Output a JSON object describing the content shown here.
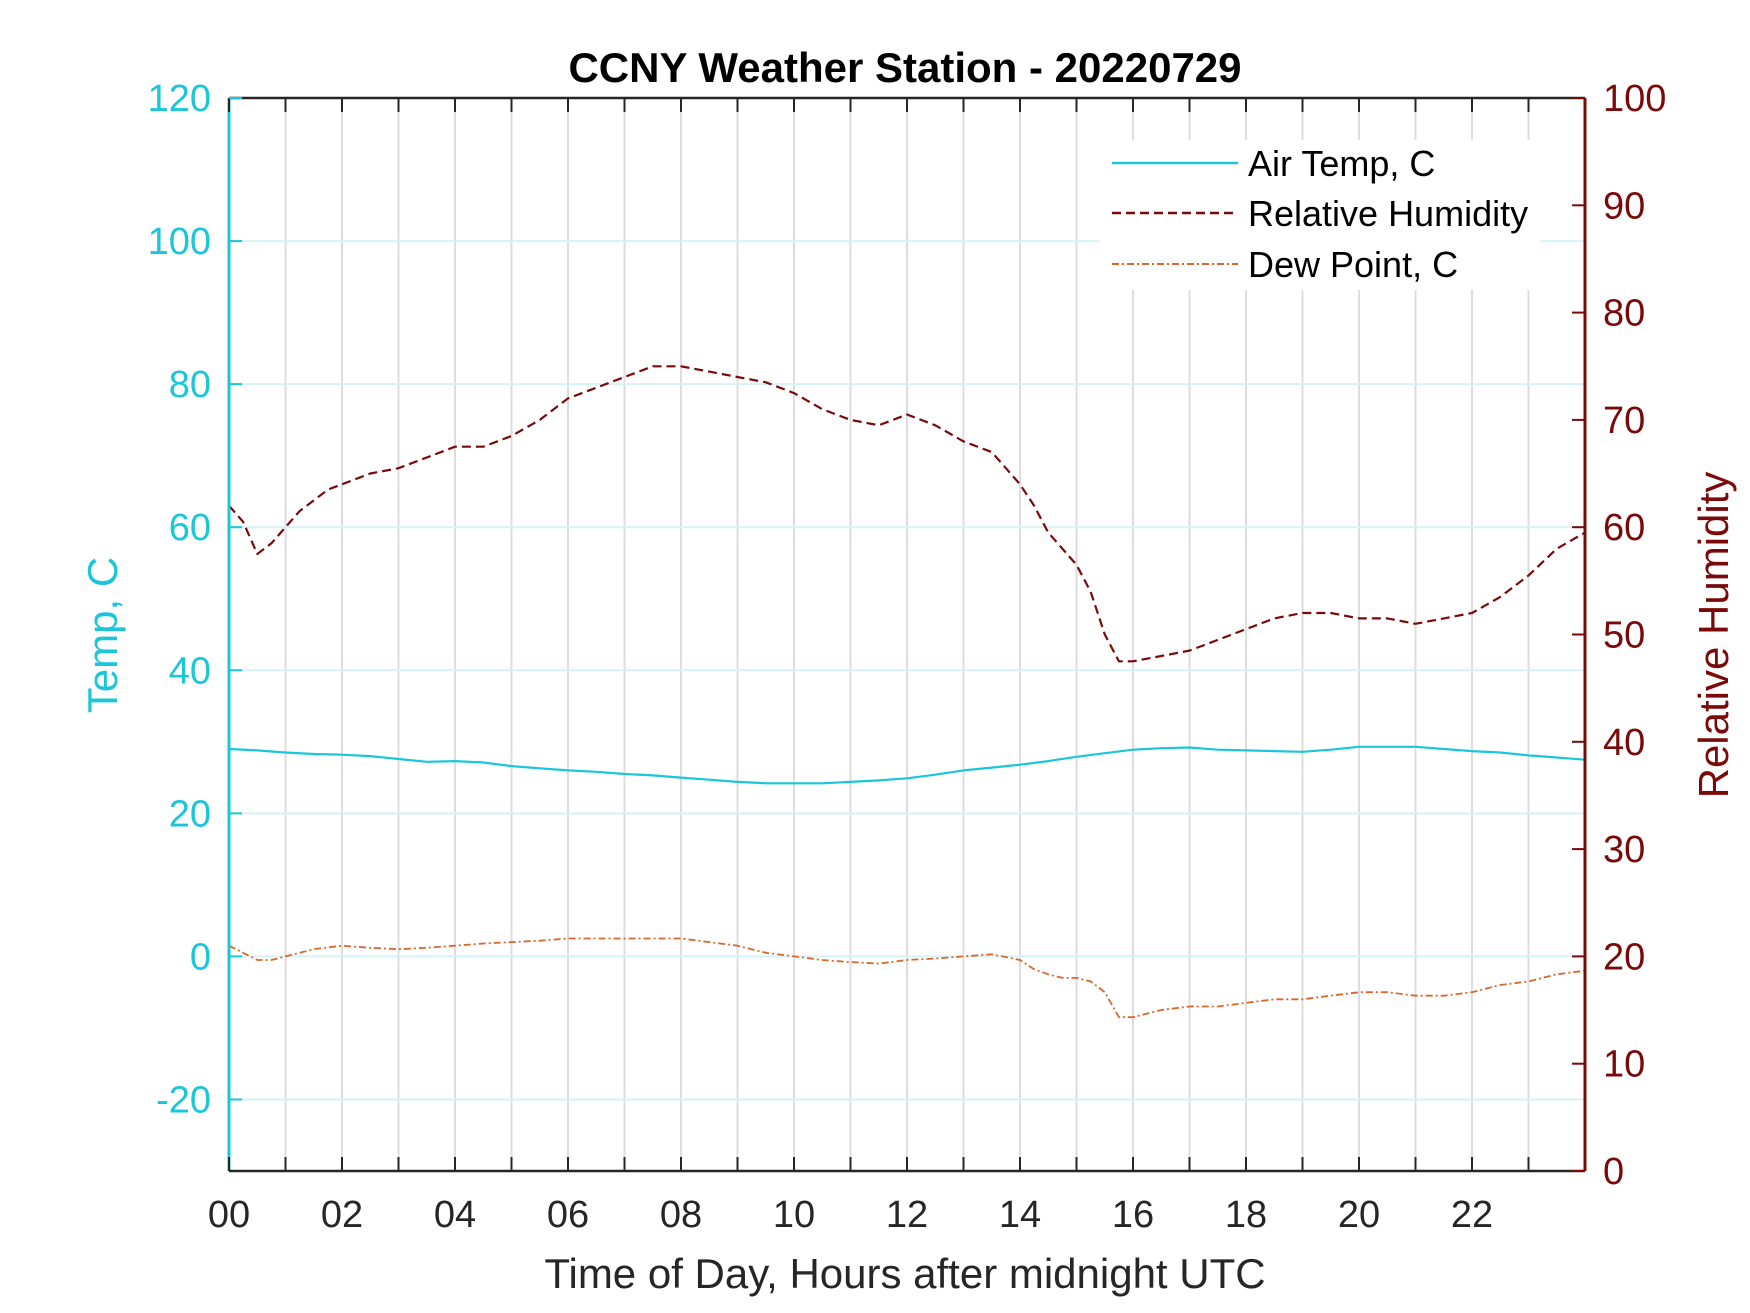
{
  "chart_data": {
    "type": "line",
    "title": "CCNY Weather Station - 20220729",
    "xlabel": "Time of Day, Hours after midnight UTC",
    "ylabel_left": "Temp, C",
    "ylabel_right": "Relative Humidity",
    "xlim": [
      0,
      24
    ],
    "ylim_left": [
      -30,
      120
    ],
    "ylim_right": [
      0,
      100
    ],
    "x_ticks": [
      0,
      2,
      4,
      6,
      8,
      10,
      12,
      14,
      16,
      18,
      20,
      22
    ],
    "x_tick_labels": [
      "00",
      "02",
      "04",
      "06",
      "08",
      "10",
      "12",
      "14",
      "16",
      "18",
      "20",
      "22"
    ],
    "y_left_ticks": [
      -20,
      0,
      20,
      40,
      60,
      80,
      100,
      120
    ],
    "y_left_tick_labels": [
      "-20",
      "0",
      "20",
      "40",
      "60",
      "80",
      "100",
      "120"
    ],
    "y_right_ticks": [
      0,
      10,
      20,
      30,
      40,
      50,
      60,
      70,
      80,
      90,
      100
    ],
    "y_right_tick_labels": [
      "0",
      "10",
      "20",
      "30",
      "40",
      "50",
      "60",
      "70",
      "80",
      "90",
      "100"
    ],
    "grid": true,
    "legend_position": "top-right",
    "colors": {
      "air_temp": "#1AC6D9",
      "humidity": "#7A0A0A",
      "dew_point": "#D9662B",
      "vertical_grid": "#DDDDDD",
      "horizontal_grid": "#D6F2F6",
      "left_axis": "#1AC6D9",
      "right_axis": "#7A0A0A",
      "x_axis": "#262626"
    },
    "series": [
      {
        "name": "Air Temp, C",
        "axis": "left",
        "style": "solid",
        "x": [
          0,
          0.5,
          1,
          1.5,
          2,
          2.5,
          3,
          3.5,
          4,
          4.5,
          5,
          5.5,
          6,
          6.5,
          7,
          7.5,
          8,
          8.5,
          9,
          9.5,
          10,
          10.5,
          11,
          11.5,
          12,
          12.5,
          13,
          13.5,
          14,
          14.5,
          15,
          15.5,
          16,
          16.5,
          17,
          17.5,
          18,
          18.5,
          19,
          19.5,
          20,
          20.5,
          21,
          21.5,
          22,
          22.5,
          23,
          23.5,
          24
        ],
        "values": [
          29.0,
          28.8,
          28.5,
          28.3,
          28.2,
          28.0,
          27.6,
          27.2,
          27.3,
          27.1,
          26.6,
          26.3,
          26.0,
          25.8,
          25.5,
          25.3,
          25.0,
          24.7,
          24.4,
          24.2,
          24.2,
          24.2,
          24.4,
          24.6,
          24.9,
          25.4,
          26.0,
          26.4,
          26.8,
          27.3,
          27.9,
          28.4,
          28.9,
          29.1,
          29.2,
          28.9,
          28.8,
          28.7,
          28.6,
          28.9,
          29.3,
          29.3,
          29.3,
          29.0,
          28.7,
          28.5,
          28.1,
          27.8,
          27.5
        ]
      },
      {
        "name": "Relative Humidity",
        "axis": "right",
        "style": "dashed",
        "x": [
          0,
          0.25,
          0.5,
          0.75,
          1,
          1.25,
          1.5,
          1.75,
          2,
          2.5,
          3,
          3.5,
          4,
          4.5,
          5,
          5.5,
          6,
          6.5,
          7,
          7.5,
          8,
          8.5,
          9,
          9.5,
          10,
          10.5,
          11,
          11.5,
          12,
          12.5,
          13,
          13.5,
          13.75,
          14,
          14.25,
          14.5,
          15,
          15.25,
          15.5,
          15.75,
          16,
          16.5,
          17,
          17.5,
          18,
          18.5,
          19,
          19.5,
          20,
          20.5,
          21,
          21.5,
          22,
          22.5,
          23,
          23.5,
          24
        ],
        "values": [
          62,
          60.5,
          57.5,
          58.5,
          60,
          61.5,
          62.5,
          63.5,
          64,
          65,
          65.5,
          66.5,
          67.5,
          67.5,
          68.5,
          70,
          72,
          73,
          74,
          75,
          75,
          74.5,
          74,
          73.5,
          72.5,
          71,
          70,
          69.5,
          70.5,
          69.5,
          68,
          67,
          65.5,
          64,
          62,
          59.5,
          56.5,
          54,
          50,
          47.5,
          47.5,
          48,
          48.5,
          49.5,
          50.5,
          51.5,
          52,
          52,
          51.5,
          51.5,
          51,
          51.5,
          52,
          53.5,
          55.5,
          58,
          59.5
        ]
      },
      {
        "name": "Dew Point, C",
        "axis": "left",
        "style": "dash-dot",
        "x": [
          0,
          0.25,
          0.5,
          0.75,
          1,
          1.5,
          2,
          2.5,
          3,
          3.5,
          4,
          4.5,
          5,
          5.5,
          6,
          6.5,
          7,
          7.5,
          8,
          8.5,
          9,
          9.5,
          10,
          10.5,
          11,
          11.5,
          12,
          12.5,
          13,
          13.5,
          14,
          14.25,
          14.5,
          14.75,
          15,
          15.25,
          15.5,
          15.75,
          16,
          16.5,
          17,
          17.5,
          18,
          18.5,
          19,
          19.5,
          20,
          20.5,
          21,
          21.5,
          22,
          22.5,
          23,
          23.5,
          24
        ],
        "values": [
          1.5,
          0.5,
          -0.5,
          -0.5,
          0,
          1,
          1.5,
          1.2,
          1,
          1.2,
          1.5,
          1.8,
          2,
          2.2,
          2.5,
          2.5,
          2.5,
          2.5,
          2.5,
          2,
          1.5,
          0.5,
          0,
          -0.5,
          -0.8,
          -1,
          -0.5,
          -0.3,
          0,
          0.3,
          -0.5,
          -1.8,
          -2.5,
          -3,
          -3,
          -3.5,
          -5,
          -8.5,
          -8.5,
          -7.5,
          -7,
          -7,
          -6.5,
          -6,
          -6,
          -5.5,
          -5,
          -5,
          -5.5,
          -5.5,
          -5,
          -4,
          -3.5,
          -2.5,
          -2
        ]
      }
    ]
  }
}
